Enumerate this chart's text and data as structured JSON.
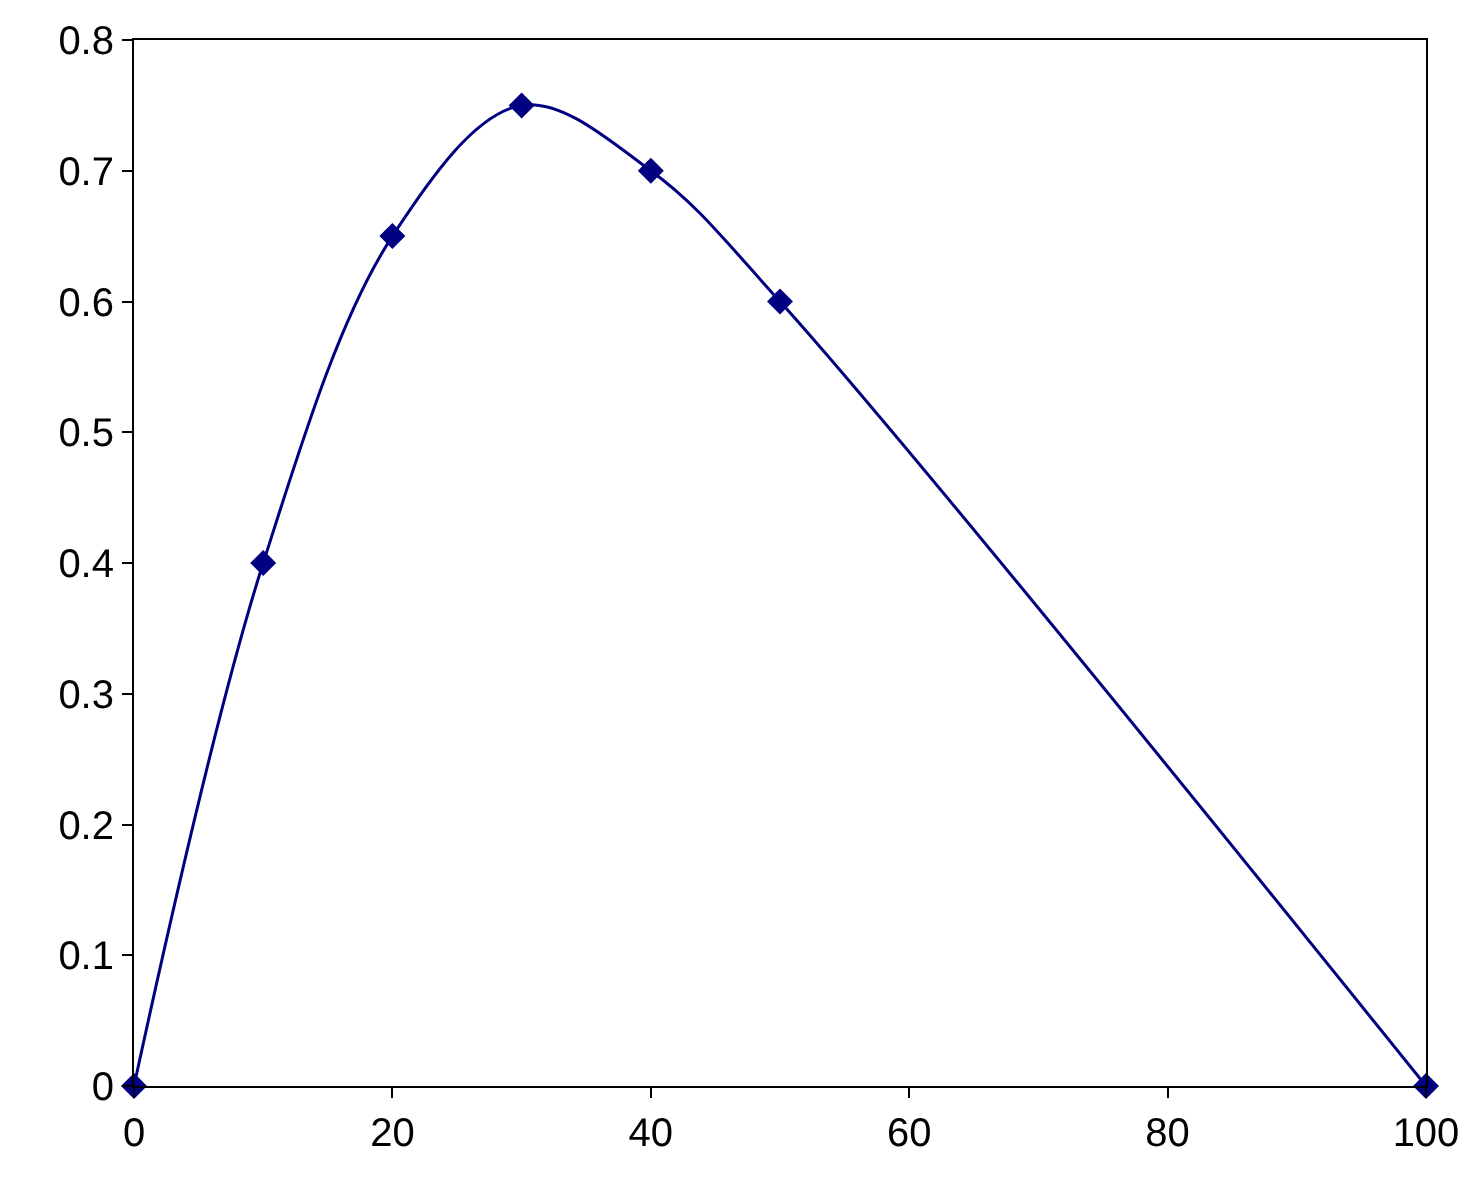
{
  "chart_data": {
    "type": "line",
    "x": [
      0,
      10,
      20,
      30,
      40,
      50,
      100
    ],
    "series": [
      {
        "color": "#000080",
        "values": [
          0,
          0.4,
          0.65,
          0.75,
          0.7,
          0.6,
          0
        ]
      }
    ],
    "xlim": [
      0,
      100
    ],
    "xticks": [
      0,
      20,
      40,
      60,
      80,
      100
    ],
    "ylim": [
      0,
      0.8
    ],
    "yticks": [
      0,
      0.1,
      0.2,
      0.3,
      0.4,
      0.5,
      0.6,
      0.7,
      0.8
    ],
    "marker": "diamond",
    "line_style": "solid"
  }
}
